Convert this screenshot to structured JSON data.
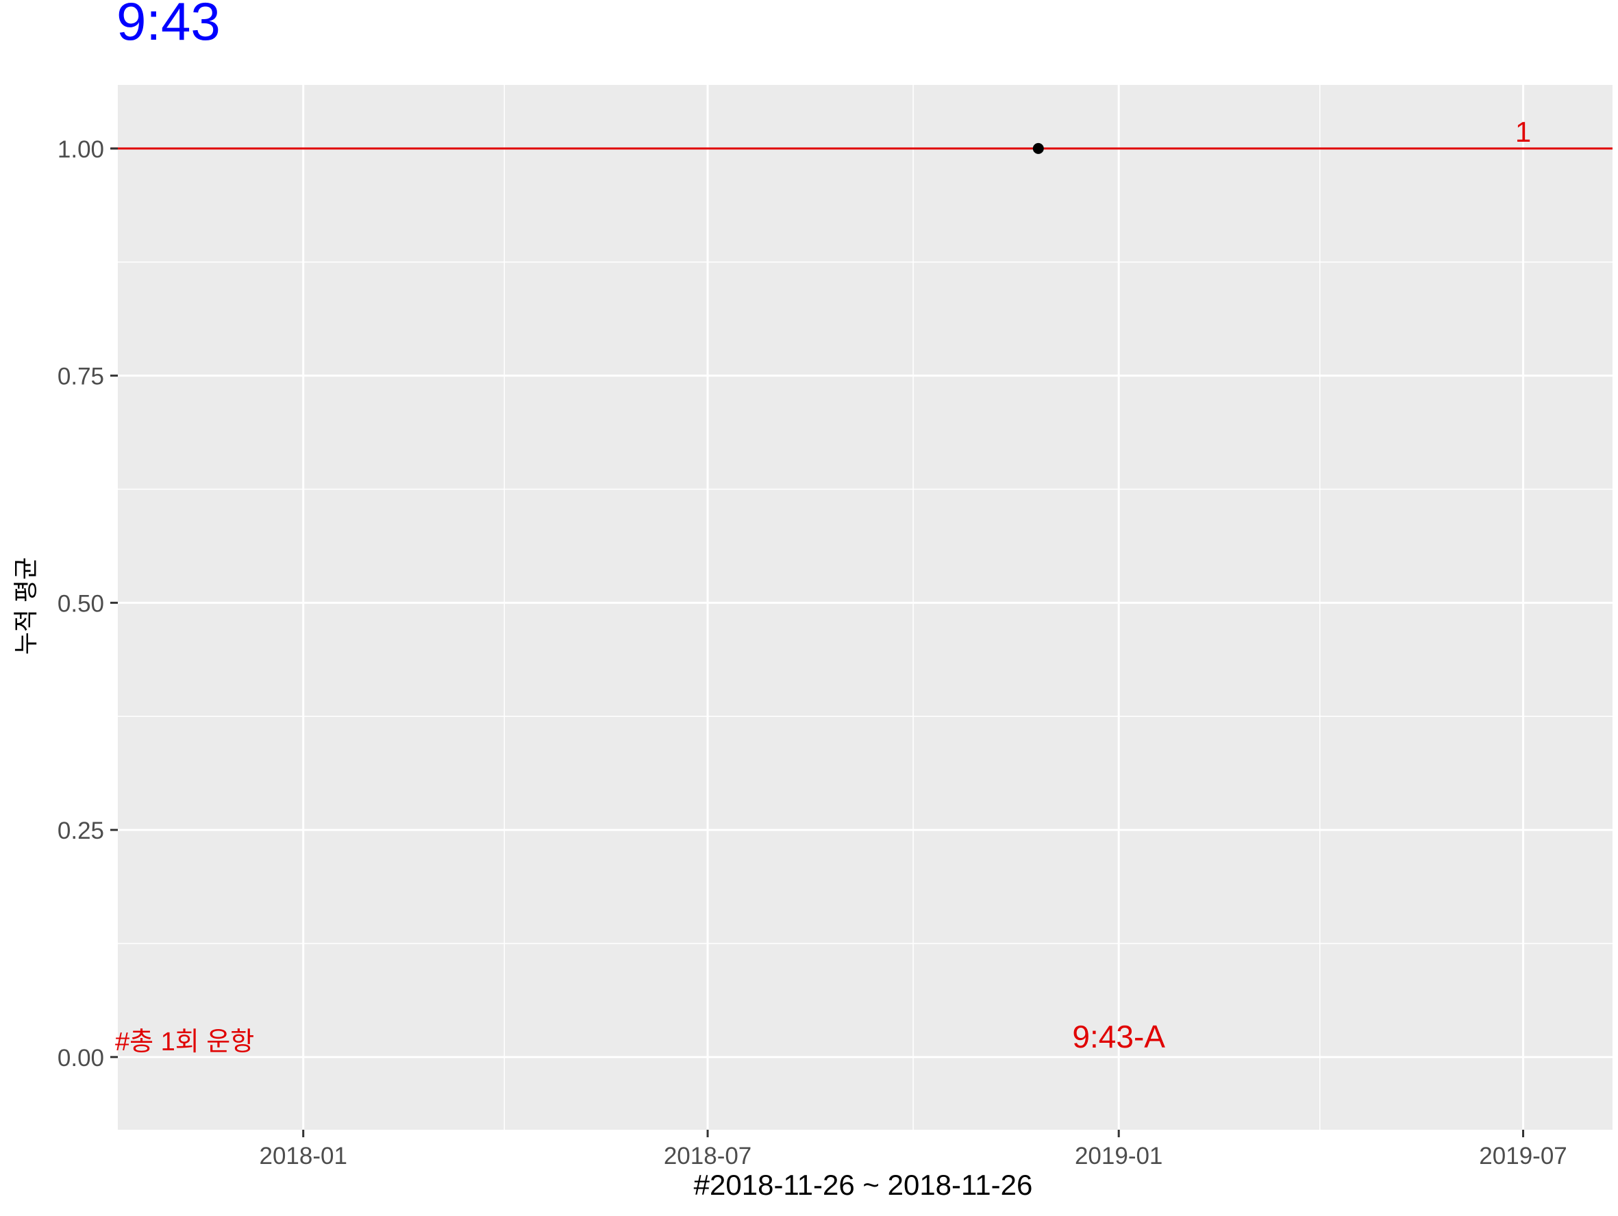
{
  "chart_data": {
    "type": "scatter",
    "title": "9:43",
    "xlabel": "#2018-11-26 ~ 2018-11-26",
    "ylabel": "누적 평균",
    "xlim": [
      "2017-10-10",
      "2019-08-10"
    ],
    "ylim": [
      -0.08,
      1.07
    ],
    "x_ticks": [
      "2018-01",
      "2018-07",
      "2019-01",
      "2019-07"
    ],
    "x_tick_dates": [
      "2018-01-01",
      "2018-07-01",
      "2019-01-01",
      "2019-07-01"
    ],
    "x_minor_dates": [
      "2017-10-01",
      "2018-04-01",
      "2018-10-01",
      "2019-04-01"
    ],
    "y_ticks": [
      "0.00",
      "0.25",
      "0.50",
      "0.75",
      "1.00"
    ],
    "y_tick_values": [
      0,
      0.25,
      0.5,
      0.75,
      1.0
    ],
    "y_minor_values": [
      0.125,
      0.375,
      0.625,
      0.875
    ],
    "grid": true,
    "points": [
      {
        "x": "2018-11-26",
        "y": 1.0
      }
    ],
    "hline": {
      "y": 1.0,
      "label": "1",
      "label_x": "2019-07-01",
      "color": "#e00000"
    },
    "annotations": [
      {
        "text": "#총 1회 운항",
        "x": "2017-10-10",
        "y": 0.0,
        "color": "#e00000"
      },
      {
        "text": "9:43-A",
        "x": "2019-01-01",
        "y": 0.0,
        "color": "#e00000"
      }
    ],
    "colors": {
      "title": "#0000ff",
      "panel": "#ebebeb",
      "grid": "#ffffff",
      "point": "#000000",
      "annotation": "#e00000",
      "axis_text": "#4d4d4d"
    }
  }
}
